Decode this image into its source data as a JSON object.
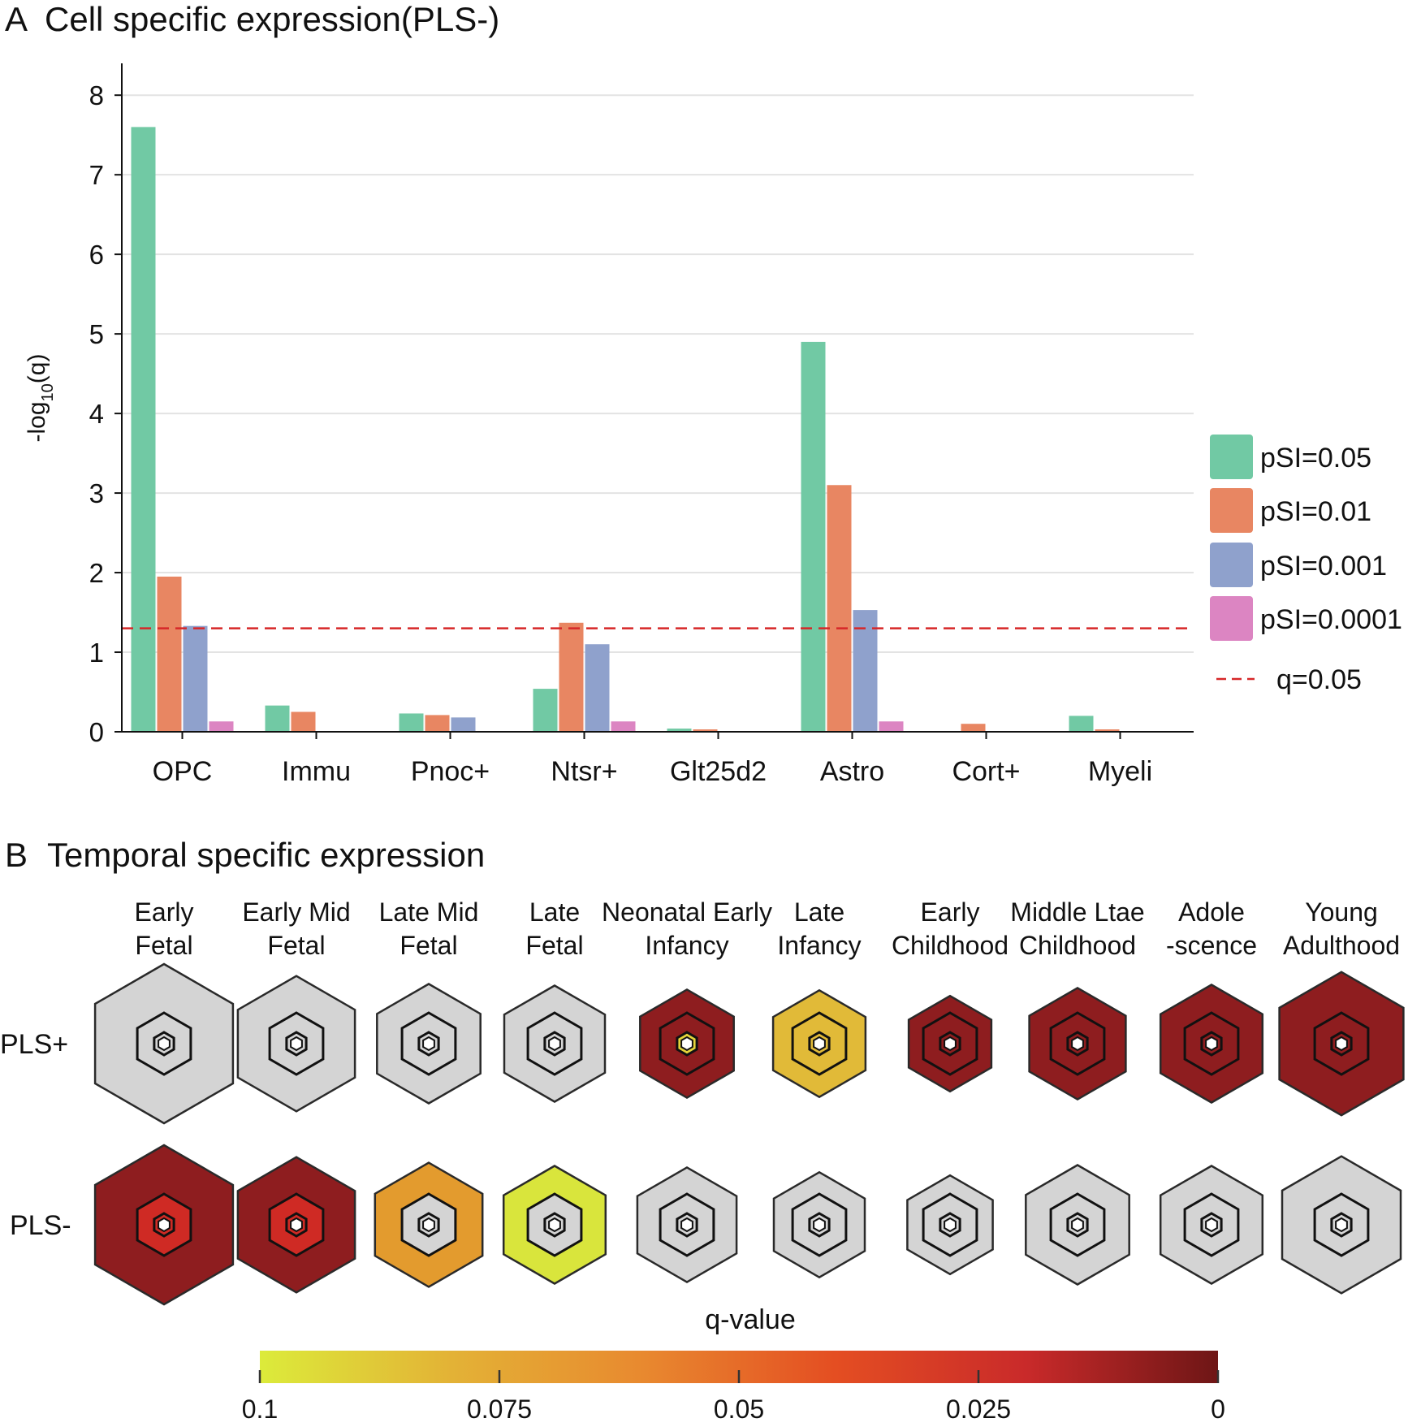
{
  "panel_a": {
    "letter": "A",
    "title": "Cell specific expression(PLS-)"
  },
  "panel_b": {
    "letter": "B",
    "title": "Temporal specific expression"
  },
  "colorbar": {
    "title": "q-value",
    "ticks": [
      "0.1",
      "0.075",
      "0.05",
      "0.025",
      "0"
    ],
    "stops": [
      "#dceb3a",
      "#e3b236",
      "#e8892f",
      "#e44e22",
      "#c92a2a",
      "#6e1616"
    ]
  },
  "chart_data": [
    {
      "type": "bar",
      "title": "Cell specific expression(PLS-)",
      "xlabel": "",
      "ylabel_main": "-log",
      "ylabel_sub": "10",
      "ylabel_tail": "(q)",
      "ylim": [
        0,
        8.4
      ],
      "yticks": [
        "0",
        "1",
        "2",
        "3",
        "4",
        "5",
        "6",
        "7",
        "8"
      ],
      "grid": true,
      "legend_position": "right",
      "categories": [
        "OPC",
        "Immu",
        "Pnoc+",
        "Ntsr+",
        "Glt25d2",
        "Astro",
        "Cort+",
        "Myeli"
      ],
      "series": [
        {
          "name": "pSI=0.05",
          "color": "#71c9a4",
          "values": [
            7.6,
            0.33,
            0.23,
            0.54,
            0.04,
            4.9,
            0.01,
            0.2
          ]
        },
        {
          "name": "pSI=0.01",
          "color": "#e88662",
          "values": [
            1.95,
            0.25,
            0.21,
            1.37,
            0.03,
            3.1,
            0.1,
            0.03
          ]
        },
        {
          "name": "pSI=0.001",
          "color": "#8fa1cc",
          "values": [
            1.33,
            0,
            0.18,
            1.1,
            0,
            1.53,
            0,
            0
          ]
        },
        {
          "name": "pSI=0.0001",
          "color": "#dc85c2",
          "values": [
            0.13,
            0,
            0,
            0.13,
            0,
            0.13,
            0,
            0
          ]
        }
      ],
      "threshold": {
        "name": "q=0.05",
        "value": 1.3,
        "color": "#d62728"
      }
    },
    {
      "type": "heatmap",
      "title": "Temporal specific expression",
      "columns": [
        [
          "Early",
          "Fetal"
        ],
        [
          "Early Mid",
          "Fetal"
        ],
        [
          "Late Mid",
          "Fetal"
        ],
        [
          "Late",
          "Fetal"
        ],
        [
          "Neonatal Early",
          "Infancy"
        ],
        [
          "Late",
          "Infancy"
        ],
        [
          "Early",
          "Childhood"
        ],
        [
          "Middle Ltae",
          "Childhood"
        ],
        [
          "Adole",
          "-scence"
        ],
        [
          "Young",
          "Adulthood"
        ]
      ],
      "rows": [
        {
          "name": "PLS+",
          "cells": [
            {
              "fill": "#d4d4d4",
              "inner": "#d4d4d4",
              "core": "#d4d4d4",
              "scale": 1.0
            },
            {
              "fill": "#d4d4d4",
              "inner": "#d4d4d4",
              "core": "#d4d4d4",
              "scale": 0.85
            },
            {
              "fill": "#d4d4d4",
              "inner": "#d4d4d4",
              "core": "#d4d4d4",
              "scale": 0.75
            },
            {
              "fill": "#d4d4d4",
              "inner": "#d4d4d4",
              "core": "#d4d4d4",
              "scale": 0.73
            },
            {
              "fill": "#8e1d1f",
              "inner": "#8e1d1f",
              "core": "#e5d43a",
              "scale": 0.68
            },
            {
              "fill": "#e1ba38",
              "inner": "#e1ba38",
              "core": "#e1ba38",
              "scale": 0.67
            },
            {
              "fill": "#8e1d1f",
              "inner": "#8e1d1f",
              "core": "#8e1d1f",
              "scale": 0.6
            },
            {
              "fill": "#8e1d1f",
              "inner": "#8e1d1f",
              "core": "#8e1d1f",
              "scale": 0.7
            },
            {
              "fill": "#8e1d1f",
              "inner": "#8e1d1f",
              "core": "#8e1d1f",
              "scale": 0.74
            },
            {
              "fill": "#8e1d1f",
              "inner": "#8e1d1f",
              "core": "#8e1d1f",
              "scale": 0.9
            }
          ]
        },
        {
          "name": "PLS-",
          "cells": [
            {
              "fill": "#8e1d1f",
              "inner": "#cf2a24",
              "core": "#cf2a24",
              "scale": 1.0
            },
            {
              "fill": "#8e1d1f",
              "inner": "#cf2a24",
              "core": "#cf2a24",
              "scale": 0.85
            },
            {
              "fill": "#e39b2e",
              "inner": "#d4d4d4",
              "core": "#d4d4d4",
              "scale": 0.78
            },
            {
              "fill": "#d9e53c",
              "inner": "#d4d4d4",
              "core": "#d4d4d4",
              "scale": 0.74
            },
            {
              "fill": "#d4d4d4",
              "inner": "#d4d4d4",
              "core": "#d4d4d4",
              "scale": 0.72
            },
            {
              "fill": "#d4d4d4",
              "inner": "#d4d4d4",
              "core": "#d4d4d4",
              "scale": 0.66
            },
            {
              "fill": "#d4d4d4",
              "inner": "#d4d4d4",
              "core": "#d4d4d4",
              "scale": 0.62
            },
            {
              "fill": "#d4d4d4",
              "inner": "#d4d4d4",
              "core": "#d4d4d4",
              "scale": 0.75
            },
            {
              "fill": "#d4d4d4",
              "inner": "#d4d4d4",
              "core": "#d4d4d4",
              "scale": 0.74
            },
            {
              "fill": "#d4d4d4",
              "inner": "#d4d4d4",
              "core": "#d4d4d4",
              "scale": 0.86
            }
          ]
        }
      ]
    }
  ]
}
